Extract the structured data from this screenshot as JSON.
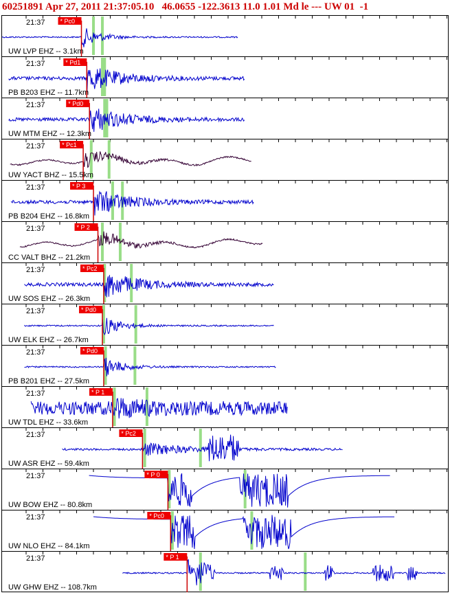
{
  "header": {
    "text": "60251891 Apr 27, 2011 21:37:05.10   46.0655 -122.3613 11.0 1.01 Md le --- UW 01  -1"
  },
  "colors": {
    "header_red": "#cc0000",
    "trace_blue": "#0000cc",
    "trace_dark": "#330033",
    "pick_red": "#ee0000",
    "pick_line": "#cc0000",
    "phase_green": "#99dd88",
    "frame": "#000000"
  },
  "chart_data": {
    "type": "line",
    "title": "60251891 Apr 27, 2011 21:37:05.10   46.0655 -122.3613 11.0 1.01 Md le --- UW 01  -1",
    "time_label": "21:37",
    "traces": [
      {
        "label": "UW LVP EHZ -- 3.1km",
        "pick": "* Pc0",
        "color": "blue",
        "style": "spike",
        "span": [
          0,
          0.53
        ],
        "onset": 0.178,
        "phases": [
          0.205,
          0.225
        ]
      },
      {
        "label": "PB B203 EHZ -- 11.7km",
        "pick": "* Pd1",
        "color": "blue",
        "style": "burst",
        "span": [
          0.015,
          0.545
        ],
        "onset": 0.19,
        "phases": [
          0.225,
          0.23
        ]
      },
      {
        "label": "UW MTM EHZ -- 12.3km",
        "pick": "* Pd0",
        "color": "blue",
        "style": "burst",
        "span": [
          0.015,
          0.545
        ],
        "onset": 0.196,
        "phases": [
          0.23,
          0.235
        ]
      },
      {
        "label": "UW YACT BHZ -- 15.5km",
        "pick": "* Pc1",
        "color": "dark",
        "style": "wavy",
        "span": [
          0.018,
          0.56
        ],
        "onset": 0.182,
        "phases": [
          0.2,
          0.24
        ]
      },
      {
        "label": "PB B204 EHZ -- 16.8km",
        "pick": "* P 3",
        "color": "blue",
        "style": "burst",
        "span": [
          0.02,
          0.565
        ],
        "onset": 0.205,
        "phases": [
          0.248,
          0.27
        ]
      },
      {
        "label": "CC VALT BHZ -- 21.2km",
        "pick": "* P 2",
        "color": "dark",
        "style": "wavy",
        "span": [
          0.04,
          0.585
        ],
        "onset": 0.215,
        "phases": [
          0.225,
          0.265
        ]
      },
      {
        "label": "UW SOS EHZ -- 26.3km",
        "pick": "* Pc2",
        "color": "blue",
        "style": "burst",
        "span": [
          0.05,
          0.61
        ],
        "onset": 0.228,
        "phases": [
          0.23,
          0.29
        ]
      },
      {
        "label": "UW ELK EHZ -- 26.7km",
        "pick": "* Pd0",
        "color": "blue",
        "style": "spike",
        "span": [
          0.05,
          0.61
        ],
        "onset": 0.225,
        "phases": [
          0.228,
          0.3
        ]
      },
      {
        "label": "PB B201 EHZ -- 27.5km",
        "pick": "* Pd0",
        "color": "blue",
        "style": "spike",
        "span": [
          0.05,
          0.615
        ],
        "onset": 0.228,
        "phases": [
          0.232,
          0.298
        ]
      },
      {
        "label": "UW TDL EHZ -- 33.6km",
        "pick": "* P 1",
        "color": "blue",
        "style": "noisy",
        "span": [
          0.065,
          0.64
        ],
        "onset": 0.248,
        "phases": [
          0.252,
          0.325
        ]
      },
      {
        "label": "UW ASR EHZ -- 59.4km",
        "pick": "* Pc2",
        "color": "blue",
        "style": "burst2",
        "span": [
          0.135,
          0.765
        ],
        "onset": 0.315,
        "phases": [
          0.32,
          0.445
        ]
      },
      {
        "label": "UW BOW EHZ -- 80.8km",
        "pick": "* P 0",
        "color": "blue",
        "style": "clip",
        "span": [
          0.195,
          0.87
        ],
        "onset": 0.372,
        "phases": [
          0.375,
          0.545
        ]
      },
      {
        "label": "UW NLO EHZ -- 84.1km",
        "pick": "* Pc0",
        "color": "blue",
        "style": "clip",
        "span": [
          0.205,
          0.88
        ],
        "onset": 0.378,
        "phases": [
          0.382,
          0.56
        ]
      },
      {
        "label": "UW GHW EHZ -- 108.7km",
        "pick": "* P 1",
        "color": "blue",
        "style": "sparse",
        "span": [
          0.27,
          0.995
        ],
        "onset": 0.415,
        "phases": [
          0.445,
          0.68
        ]
      }
    ]
  }
}
